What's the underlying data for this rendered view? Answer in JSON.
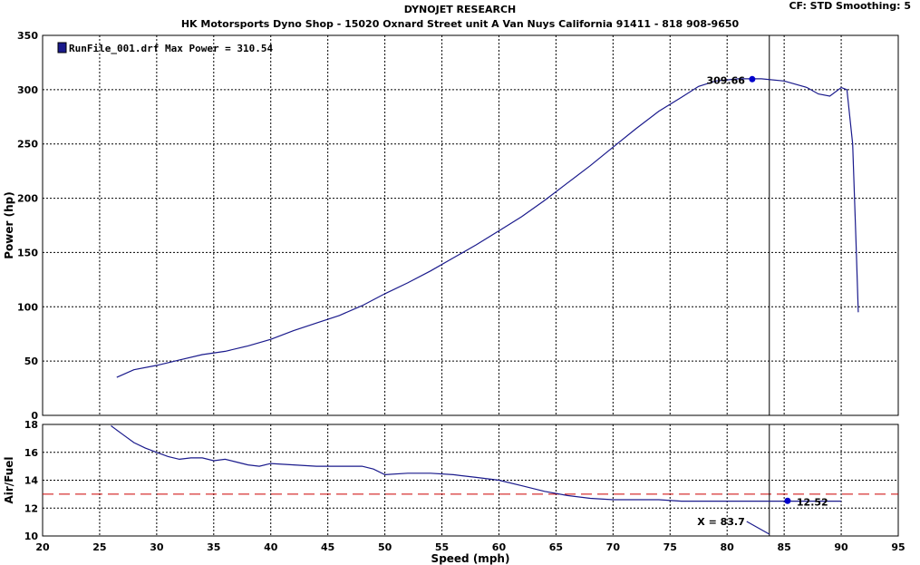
{
  "header": {
    "title": "DYNOJET RESEARCH",
    "subtitle": "HK Motorsports Dyno Shop - 15020 Oxnard Street  unit A Van Nuys California 91411 - 818 908-9650",
    "settings": "CF: STD  Smoothing: 5"
  },
  "colors": {
    "curve": "#1a1a8c",
    "marker": "#0000cc",
    "reference_line": "#cc0000",
    "grid": "#000000",
    "legend_swatch": "#1a1a8c"
  },
  "chart_data": [
    {
      "type": "line",
      "name": "power",
      "xlabel": "Speed (mph)",
      "ylabel": "Power (hp)",
      "xlim": [
        20,
        95
      ],
      "ylim": [
        0,
        350
      ],
      "x_ticks": [
        20,
        25,
        30,
        35,
        40,
        45,
        50,
        55,
        60,
        65,
        70,
        75,
        80,
        85,
        90,
        95
      ],
      "y_ticks": [
        0,
        50,
        100,
        150,
        200,
        250,
        300,
        350
      ],
      "grid": true,
      "legend": "top-left",
      "legend_label": "RunFile_001.drf Max Power = 310.54",
      "series": [
        {
          "name": "RunFile_001.drf",
          "x": [
            26.5,
            28,
            30,
            32,
            34,
            36,
            38,
            40,
            42,
            44,
            46,
            48,
            50,
            52,
            54,
            56,
            58,
            60,
            62,
            64,
            66,
            68,
            70,
            72,
            74,
            76,
            77.5,
            79,
            81,
            83,
            85,
            87,
            88,
            89,
            90,
            90.5,
            91,
            91.3,
            91.5
          ],
          "y": [
            35,
            42,
            46,
            51,
            56,
            59,
            64,
            70,
            78,
            85,
            92,
            101,
            112,
            122,
            133,
            145,
            157,
            170,
            183,
            198,
            214,
            230,
            247,
            264,
            280,
            293,
            303,
            308,
            310,
            310,
            308,
            302,
            296,
            294,
            302,
            300,
            250,
            160,
            95
          ]
        }
      ],
      "cursor_x": 83.7,
      "annotations": [
        {
          "label": "309.66",
          "x": 82.2,
          "y": 309.66
        }
      ]
    },
    {
      "type": "line",
      "name": "air_fuel",
      "xlabel": "Speed (mph)",
      "ylabel": "Air/Fuel",
      "xlim": [
        20,
        95
      ],
      "ylim": [
        10,
        18
      ],
      "x_ticks": [
        20,
        25,
        30,
        35,
        40,
        45,
        50,
        55,
        60,
        65,
        70,
        75,
        80,
        85,
        90,
        95
      ],
      "y_ticks": [
        10,
        12,
        14,
        16,
        18
      ],
      "grid": true,
      "reference_line": 13.0,
      "series": [
        {
          "name": "RunFile_001.drf",
          "x": [
            26,
            27,
            28,
            29,
            30,
            31,
            32,
            33,
            34,
            35,
            36,
            37,
            38,
            39,
            40,
            42,
            44,
            46,
            48,
            49,
            50,
            52,
            54,
            56,
            58,
            60,
            62,
            64,
            66,
            68,
            70,
            72,
            74,
            76,
            78,
            80,
            82,
            84,
            86,
            88,
            90
          ],
          "y": [
            17.9,
            17.3,
            16.7,
            16.3,
            16.0,
            15.7,
            15.5,
            15.6,
            15.6,
            15.4,
            15.5,
            15.3,
            15.1,
            15.0,
            15.2,
            15.1,
            15.0,
            15.0,
            15.0,
            14.8,
            14.4,
            14.5,
            14.5,
            14.4,
            14.2,
            14.0,
            13.6,
            13.2,
            12.9,
            12.7,
            12.6,
            12.6,
            12.6,
            12.5,
            12.5,
            12.5,
            12.5,
            12.5,
            12.5,
            12.5,
            12.5
          ]
        }
      ],
      "cursor_x": 83.7,
      "cursor_label": "X = 83.7",
      "annotations": [
        {
          "label": "12.52",
          "x": 85.3,
          "y": 12.52
        }
      ]
    }
  ]
}
